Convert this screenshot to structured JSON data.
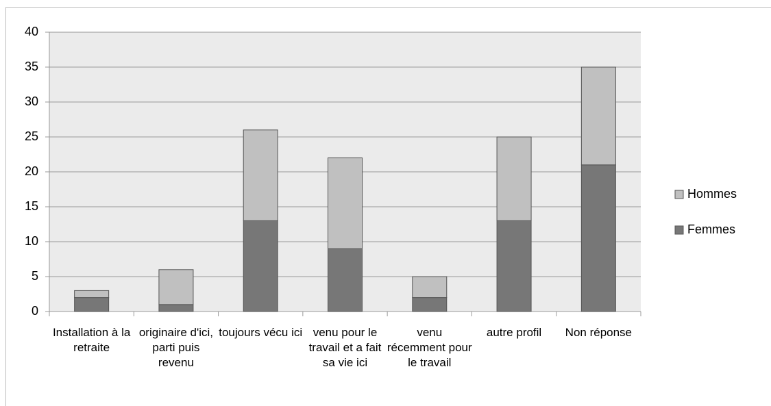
{
  "chart_data": {
    "type": "stacked_bar",
    "categories": [
      "Installation à la retraite",
      "originaire d'ici, parti puis revenu",
      "toujours vécu ici",
      "venu pour le travail et a fait sa vie ici",
      "venu récemment pour le travail",
      "autre profil",
      "Non réponse"
    ],
    "series": [
      {
        "name": "Femmes",
        "color": "#777777",
        "values": [
          2,
          1,
          13,
          9,
          2,
          13,
          21
        ]
      },
      {
        "name": "Hommes",
        "color": "#c0c0c0",
        "values": [
          1,
          5,
          13,
          13,
          3,
          12,
          14
        ]
      }
    ],
    "ylim": [
      0,
      40
    ],
    "yticks": [
      0,
      5,
      10,
      15,
      20,
      25,
      30,
      35,
      40
    ],
    "grid": true,
    "legend": "right"
  }
}
